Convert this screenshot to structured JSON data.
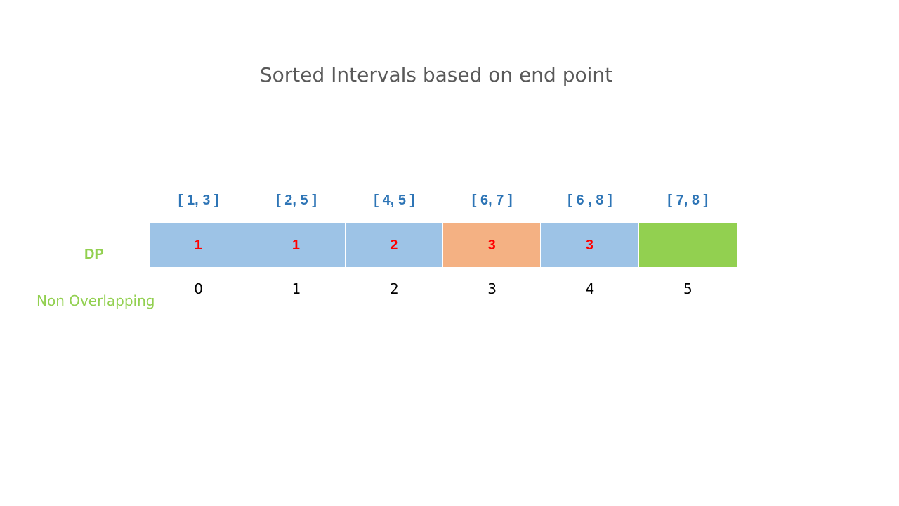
{
  "title": "Sorted Intervals based on end point",
  "labels": {
    "dp": "DP",
    "non_overlapping": "Non Overlapping"
  },
  "intervals": [
    "[ 1, 3 ]",
    "[ 2, 5 ]",
    "[ 4, 5 ]",
    "[ 6, 7 ]",
    "[ 6 , 8 ]",
    "[ 7, 8 ]"
  ],
  "dp_cells": [
    {
      "value": "1",
      "color": "#9dc3e6"
    },
    {
      "value": "1",
      "color": "#9dc3e6"
    },
    {
      "value": "2",
      "color": "#9dc3e6"
    },
    {
      "value": "3",
      "color": "#f4b183"
    },
    {
      "value": "3",
      "color": "#9dc3e6"
    },
    {
      "value": "",
      "color": "#92d050"
    }
  ],
  "indices": [
    "0",
    "1",
    "2",
    "3",
    "4",
    "5"
  ],
  "colors": {
    "interval_text": "#2e75b6",
    "dp_value_text": "#ff0000",
    "label_green": "#92d050",
    "title_text": "#595959"
  }
}
